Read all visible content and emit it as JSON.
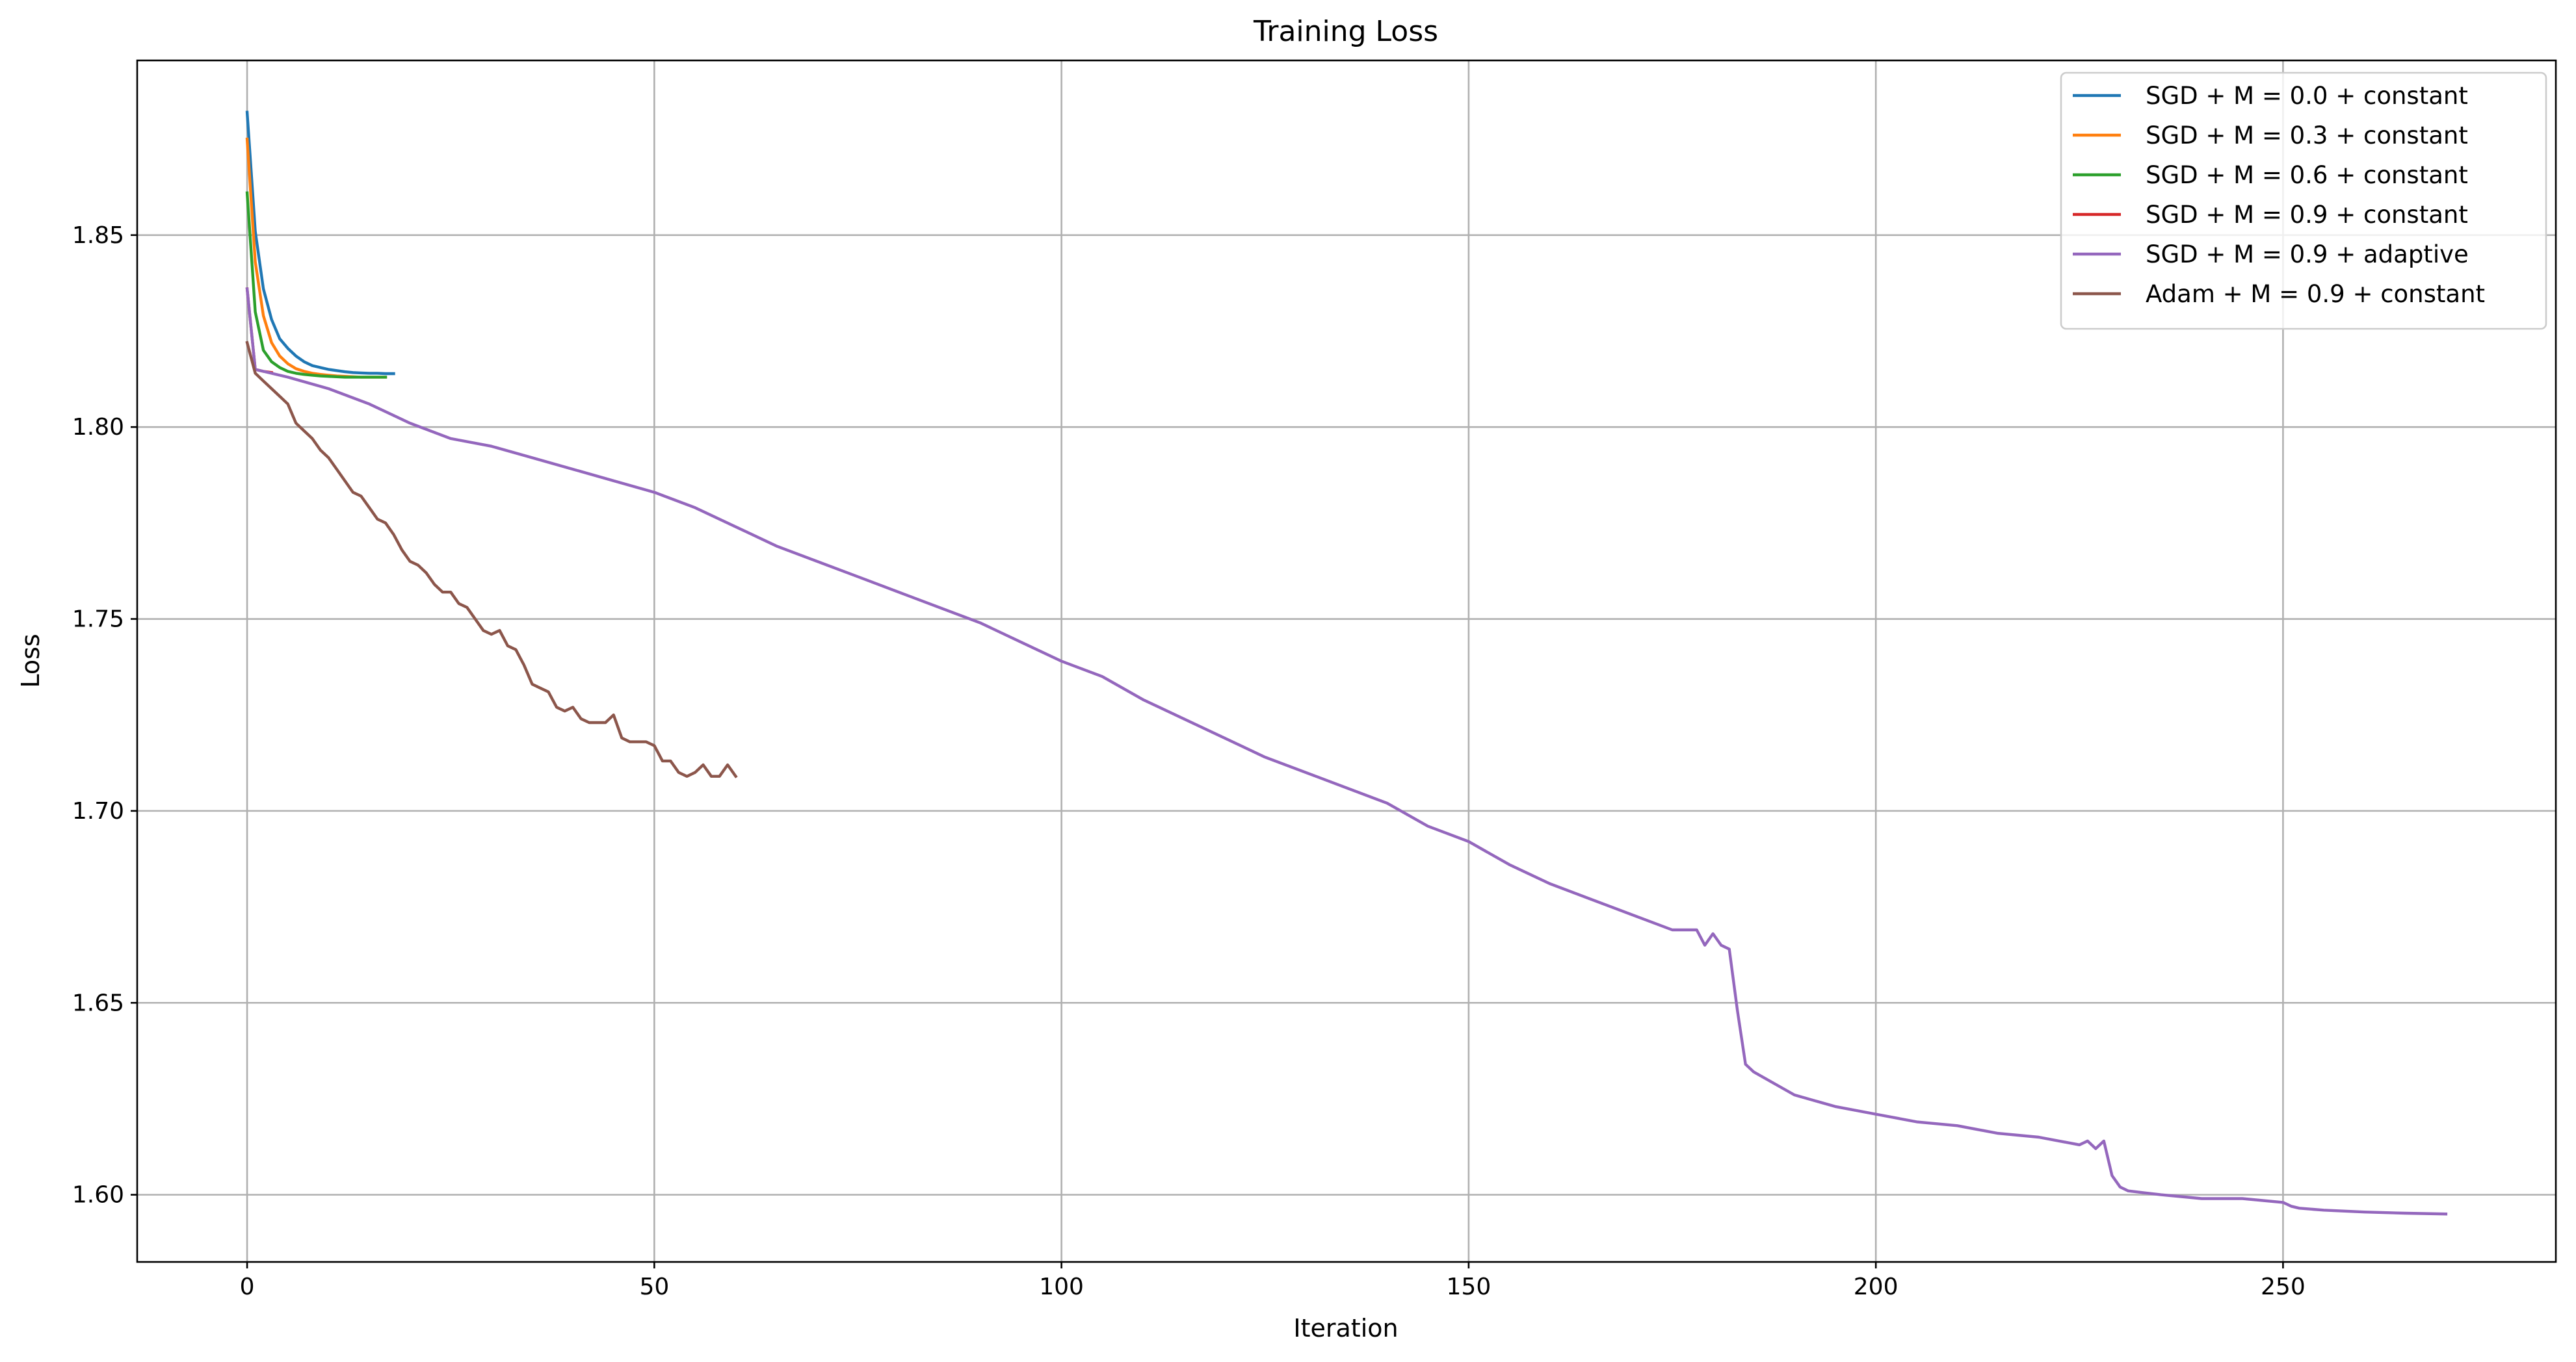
{
  "chart_data": {
    "type": "line",
    "title": "Training Loss",
    "xlabel": "Iteration",
    "ylabel": "Loss",
    "xlim": [
      -13.5,
      283.5
    ],
    "ylim": [
      1.5825,
      1.8955
    ],
    "x_ticks": [
      0,
      50,
      100,
      150,
      200,
      250
    ],
    "y_ticks": [
      1.6,
      1.65,
      1.7,
      1.75,
      1.8,
      1.85
    ],
    "x_tick_labels": [
      "0",
      "50",
      "100",
      "150",
      "200",
      "250"
    ],
    "y_tick_labels": [
      "1.60",
      "1.65",
      "1.70",
      "1.75",
      "1.80",
      "1.85"
    ],
    "grid": true,
    "legend_position": "top-right",
    "series": [
      {
        "name": "SGD + M = 0.0 + constant",
        "color": "#1f77b4",
        "x": [
          0,
          1,
          2,
          3,
          4,
          5,
          6,
          7,
          8,
          9,
          10,
          11,
          12,
          13,
          14,
          15,
          16,
          17,
          18
        ],
        "y": [
          1.882,
          1.851,
          1.836,
          1.828,
          1.823,
          1.8205,
          1.8185,
          1.817,
          1.816,
          1.8155,
          1.815,
          1.8147,
          1.8144,
          1.8142,
          1.8141,
          1.814,
          1.814,
          1.8139,
          1.8139
        ]
      },
      {
        "name": "SGD + M = 0.3 + constant",
        "color": "#ff7f0e",
        "x": [
          0,
          1,
          2,
          3,
          4,
          5,
          6,
          7,
          8,
          9,
          10,
          11,
          12,
          13,
          14,
          15,
          16,
          17
        ],
        "y": [
          1.875,
          1.843,
          1.829,
          1.822,
          1.8185,
          1.8165,
          1.8152,
          1.8145,
          1.814,
          1.8137,
          1.8135,
          1.8133,
          1.8132,
          1.8131,
          1.813,
          1.813,
          1.813,
          1.813
        ]
      },
      {
        "name": "SGD + M = 0.6 + constant",
        "color": "#2ca02c",
        "x": [
          0,
          1,
          2,
          3,
          4,
          5,
          6,
          7,
          8,
          9,
          10,
          11,
          12,
          13,
          14,
          15,
          16,
          17
        ],
        "y": [
          1.861,
          1.83,
          1.82,
          1.817,
          1.8155,
          1.8145,
          1.814,
          1.8137,
          1.8135,
          1.8133,
          1.8132,
          1.8131,
          1.813,
          1.813,
          1.813,
          1.813,
          1.813,
          1.813
        ]
      },
      {
        "name": "SGD + M = 0.9 + constant",
        "color": "#d62728",
        "x": [
          0,
          1,
          2,
          3
        ],
        "y": [
          1.836,
          1.815,
          1.8145,
          1.8142
        ]
      },
      {
        "name": "SGD + M = 0.9 + adaptive",
        "color": "#9467bd",
        "x": [
          0,
          1,
          5,
          10,
          15,
          20,
          25,
          30,
          35,
          40,
          45,
          50,
          55,
          60,
          65,
          70,
          75,
          80,
          85,
          90,
          95,
          100,
          105,
          110,
          115,
          120,
          125,
          130,
          135,
          140,
          145,
          150,
          155,
          160,
          165,
          170,
          175,
          178,
          179,
          180,
          181,
          182,
          183,
          184,
          185,
          190,
          195,
          200,
          205,
          210,
          215,
          220,
          225,
          226,
          227,
          228,
          229,
          230,
          231,
          235,
          240,
          245,
          250,
          251,
          252,
          255,
          260,
          265,
          270
        ],
        "y": [
          1.836,
          1.815,
          1.813,
          1.81,
          1.806,
          1.801,
          1.797,
          1.795,
          1.792,
          1.789,
          1.786,
          1.783,
          1.779,
          1.774,
          1.769,
          1.765,
          1.761,
          1.757,
          1.753,
          1.749,
          1.744,
          1.739,
          1.735,
          1.729,
          1.724,
          1.719,
          1.714,
          1.71,
          1.706,
          1.702,
          1.696,
          1.692,
          1.686,
          1.681,
          1.677,
          1.673,
          1.669,
          1.669,
          1.665,
          1.668,
          1.665,
          1.664,
          1.648,
          1.634,
          1.632,
          1.626,
          1.623,
          1.621,
          1.619,
          1.618,
          1.616,
          1.615,
          1.613,
          1.614,
          1.612,
          1.614,
          1.605,
          1.602,
          1.601,
          1.6,
          1.599,
          1.599,
          1.598,
          1.597,
          1.5965,
          1.596,
          1.5955,
          1.5952,
          1.595
        ]
      },
      {
        "name": "Adam + M = 0.9 + constant",
        "color": "#8c564b",
        "x": [
          0,
          1,
          2,
          3,
          4,
          5,
          6,
          7,
          8,
          9,
          10,
          11,
          12,
          13,
          14,
          15,
          16,
          17,
          18,
          19,
          20,
          21,
          22,
          23,
          24,
          25,
          26,
          27,
          28,
          29,
          30,
          31,
          32,
          33,
          34,
          35,
          36,
          37,
          38,
          39,
          40,
          41,
          42,
          43,
          44,
          45,
          46,
          47,
          48,
          49,
          50,
          51,
          52,
          53,
          54,
          55,
          56,
          57,
          58,
          59,
          60
        ],
        "y": [
          1.822,
          1.814,
          1.812,
          1.81,
          1.808,
          1.806,
          1.801,
          1.799,
          1.797,
          1.794,
          1.792,
          1.789,
          1.786,
          1.783,
          1.782,
          1.779,
          1.776,
          1.775,
          1.772,
          1.768,
          1.765,
          1.764,
          1.762,
          1.759,
          1.757,
          1.757,
          1.754,
          1.753,
          1.75,
          1.747,
          1.746,
          1.747,
          1.743,
          1.742,
          1.738,
          1.733,
          1.732,
          1.731,
          1.727,
          1.726,
          1.727,
          1.724,
          1.723,
          1.723,
          1.723,
          1.725,
          1.719,
          1.718,
          1.718,
          1.718,
          1.717,
          1.713,
          1.713,
          1.71,
          1.709,
          1.71,
          1.712,
          1.709,
          1.709,
          1.712,
          1.709
        ]
      }
    ]
  }
}
